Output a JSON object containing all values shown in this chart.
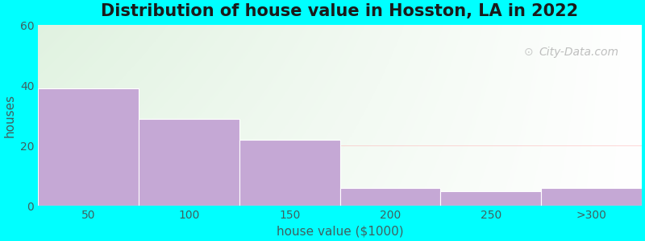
{
  "title": "Distribution of house value in Hosston, LA in 2022",
  "xlabel": "house value ($1000)",
  "ylabel": "houses",
  "categories": [
    "50",
    "100",
    "150",
    "200",
    "250",
    ">300"
  ],
  "values": [
    39,
    29,
    22,
    6,
    5,
    6
  ],
  "bar_color": "#c5a8d5",
  "bar_edgecolor": "#c5a8d5",
  "ylim": [
    0,
    60
  ],
  "yticks": [
    0,
    20,
    40,
    60
  ],
  "background_outer": "#00FFFF",
  "bg_color_topleft": "#dff0e0",
  "bg_color_right": "#ffffff",
  "title_fontsize": 15,
  "axis_label_fontsize": 11,
  "tick_color": "#406060",
  "watermark_text": "City-Data.com"
}
